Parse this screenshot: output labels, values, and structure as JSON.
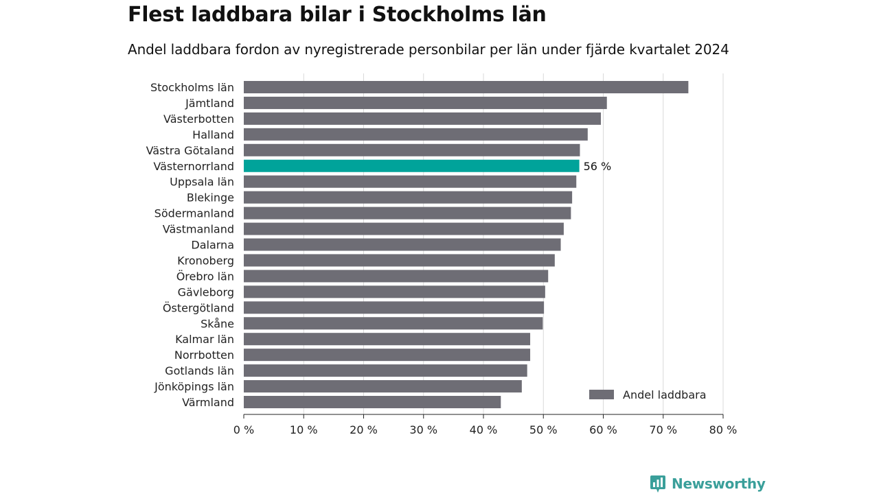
{
  "title": "Flest laddbara bilar i Stockholms län",
  "subtitle": "Andel laddbara fordon av nyregistrerade personbilar per län under fjärde kvartalet 2024",
  "brand": {
    "name": "Newsworthy",
    "icon": "newsworthy-logo-icon",
    "color": "#3a9f9a"
  },
  "colors": {
    "bar": "#6e6d75",
    "highlight": "#00a39a",
    "grid": "#d9d9d9",
    "axis": "#222222"
  },
  "chart_data": {
    "type": "bar",
    "orientation": "horizontal",
    "categories": [
      "Stockholms län",
      "Jämtland",
      "Västerbotten",
      "Halland",
      "Västra Götaland",
      "Västernorrland",
      "Uppsala län",
      "Blekinge",
      "Södermanland",
      "Västmanland",
      "Dalarna",
      "Kronoberg",
      "Örebro län",
      "Gävleborg",
      "Östergötland",
      "Skåne",
      "Kalmar län",
      "Norrbotten",
      "Gotlands län",
      "Jönköpings län",
      "Värmland"
    ],
    "series": [
      {
        "name": "Andel laddbara",
        "values": [
          74.2,
          60.6,
          59.6,
          57.4,
          56.1,
          56.0,
          55.5,
          54.8,
          54.6,
          53.4,
          52.9,
          51.9,
          50.8,
          50.3,
          50.1,
          49.9,
          47.8,
          47.8,
          47.3,
          46.4,
          42.9
        ]
      }
    ],
    "highlight_index": 5,
    "highlight_label": "56 %",
    "xlim": [
      0,
      80
    ],
    "xticks": [
      0,
      10,
      20,
      30,
      40,
      50,
      60,
      70,
      80
    ],
    "xtick_labels": [
      "0 %",
      "10 %",
      "20 %",
      "30 %",
      "40 %",
      "50 %",
      "60 %",
      "70 %",
      "80 %"
    ],
    "grid": true,
    "legend": {
      "position": "bottom-right",
      "label": "Andel laddbara"
    },
    "xlabel": "",
    "ylabel": ""
  }
}
